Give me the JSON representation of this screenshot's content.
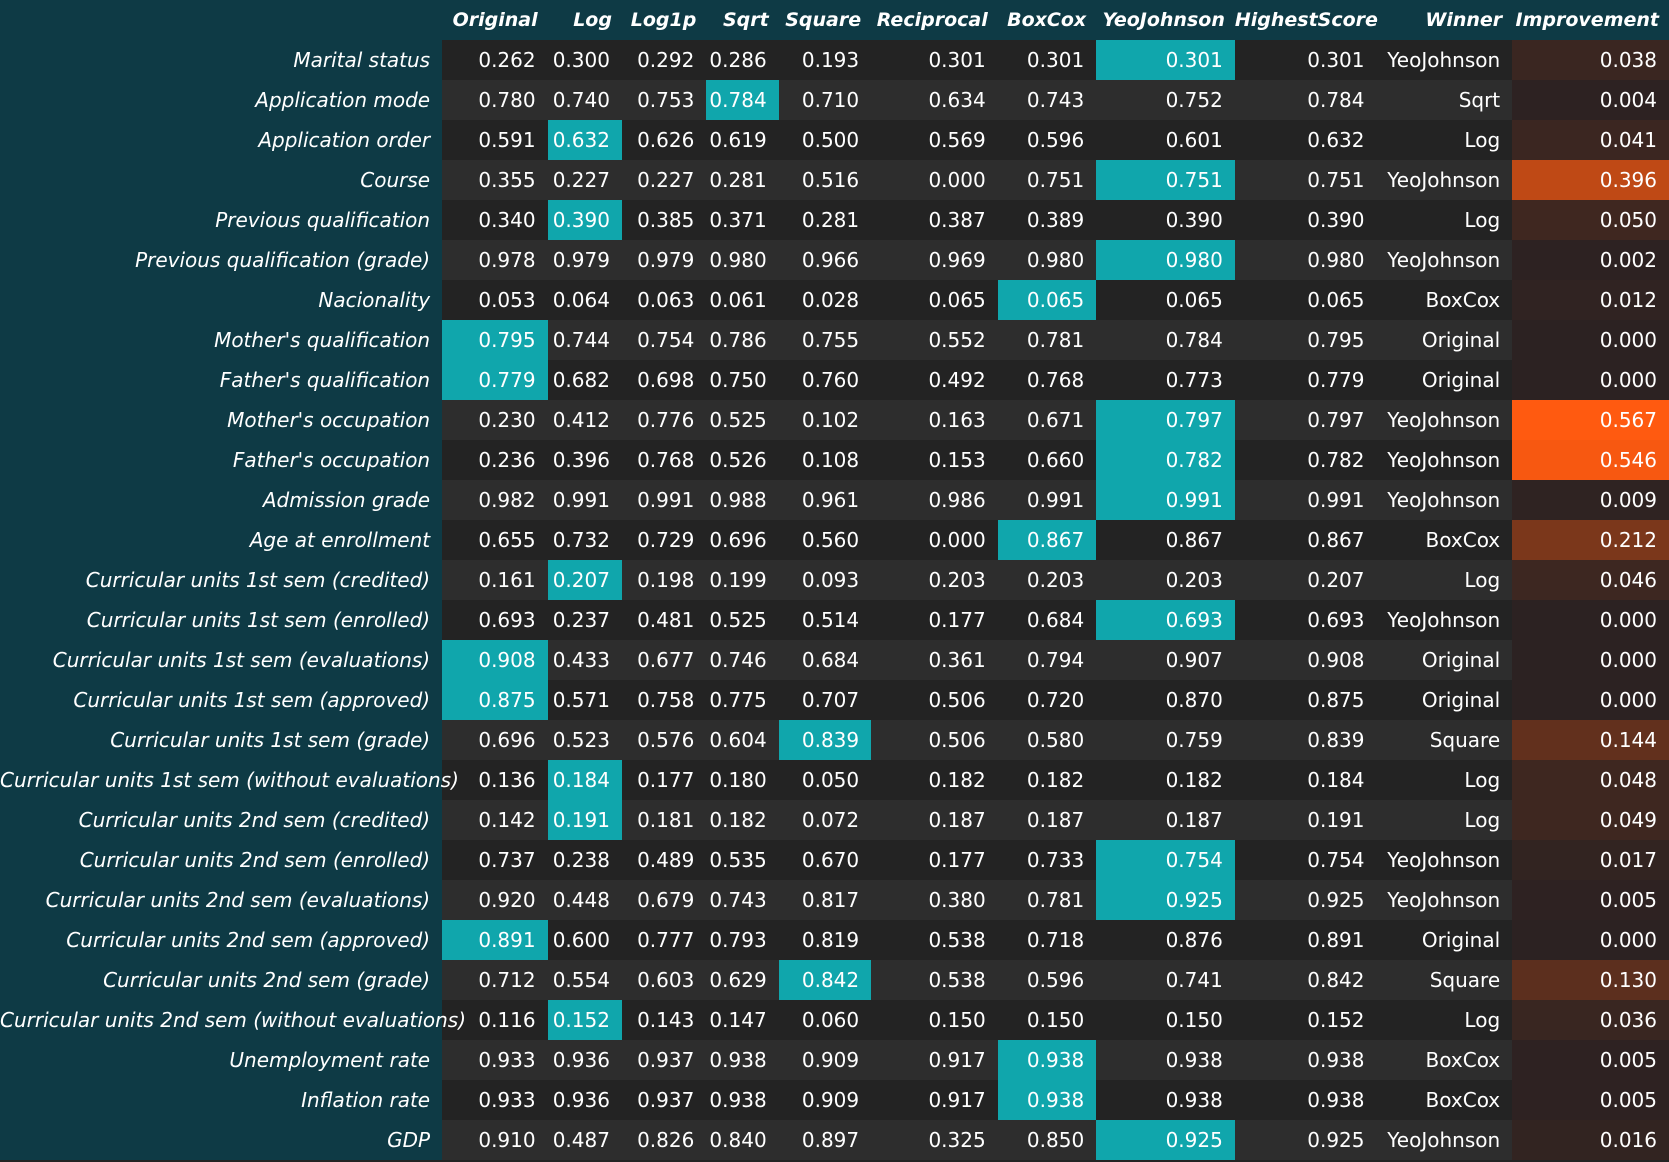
{
  "table": {
    "columns": [
      "Original",
      "Log",
      "Log1p",
      "Sqrt",
      "Square",
      "Reciprocal",
      "BoxCox",
      "YeoJohnson",
      "HighestScore",
      "Winner",
      "Improvement"
    ],
    "score_columns": 8,
    "colors": {
      "header_bg": "#0e3a45",
      "row_bg_a": "#232323",
      "row_bg_b": "#2d2d2d",
      "best_highlight": "#10a6ac",
      "improvement_low": "#2c2222",
      "improvement_high": "#ff5a10"
    },
    "rows": [
      {
        "label": "Marital status",
        "values": [
          "0.262",
          "0.300",
          "0.292",
          "0.286",
          "0.193",
          "0.301",
          "0.301",
          "0.301"
        ],
        "highest": "0.301",
        "winner": "YeoJohnson",
        "improvement": "0.038"
      },
      {
        "label": "Application mode",
        "values": [
          "0.780",
          "0.740",
          "0.753",
          "0.784",
          "0.710",
          "0.634",
          "0.743",
          "0.752"
        ],
        "highest": "0.784",
        "winner": "Sqrt",
        "improvement": "0.004"
      },
      {
        "label": "Application order",
        "values": [
          "0.591",
          "0.632",
          "0.626",
          "0.619",
          "0.500",
          "0.569",
          "0.596",
          "0.601"
        ],
        "highest": "0.632",
        "winner": "Log",
        "improvement": "0.041"
      },
      {
        "label": "Course",
        "values": [
          "0.355",
          "0.227",
          "0.227",
          "0.281",
          "0.516",
          "0.000",
          "0.751",
          "0.751"
        ],
        "highest": "0.751",
        "winner": "YeoJohnson",
        "improvement": "0.396"
      },
      {
        "label": "Previous qualification",
        "values": [
          "0.340",
          "0.390",
          "0.385",
          "0.371",
          "0.281",
          "0.387",
          "0.389",
          "0.390"
        ],
        "highest": "0.390",
        "winner": "Log",
        "improvement": "0.050"
      },
      {
        "label": "Previous qualification (grade)",
        "values": [
          "0.978",
          "0.979",
          "0.979",
          "0.980",
          "0.966",
          "0.969",
          "0.980",
          "0.980"
        ],
        "highest": "0.980",
        "winner": "YeoJohnson",
        "improvement": "0.002"
      },
      {
        "label": "Nacionality",
        "values": [
          "0.053",
          "0.064",
          "0.063",
          "0.061",
          "0.028",
          "0.065",
          "0.065",
          "0.065"
        ],
        "highest": "0.065",
        "winner": "BoxCox",
        "improvement": "0.012"
      },
      {
        "label": "Mother's qualification",
        "values": [
          "0.795",
          "0.744",
          "0.754",
          "0.786",
          "0.755",
          "0.552",
          "0.781",
          "0.784"
        ],
        "highest": "0.795",
        "winner": "Original",
        "improvement": "0.000"
      },
      {
        "label": "Father's qualification",
        "values": [
          "0.779",
          "0.682",
          "0.698",
          "0.750",
          "0.760",
          "0.492",
          "0.768",
          "0.773"
        ],
        "highest": "0.779",
        "winner": "Original",
        "improvement": "0.000"
      },
      {
        "label": "Mother's occupation",
        "values": [
          "0.230",
          "0.412",
          "0.776",
          "0.525",
          "0.102",
          "0.163",
          "0.671",
          "0.797"
        ],
        "highest": "0.797",
        "winner": "YeoJohnson",
        "improvement": "0.567"
      },
      {
        "label": "Father's occupation",
        "values": [
          "0.236",
          "0.396",
          "0.768",
          "0.526",
          "0.108",
          "0.153",
          "0.660",
          "0.782"
        ],
        "highest": "0.782",
        "winner": "YeoJohnson",
        "improvement": "0.546"
      },
      {
        "label": "Admission grade",
        "values": [
          "0.982",
          "0.991",
          "0.991",
          "0.988",
          "0.961",
          "0.986",
          "0.991",
          "0.991"
        ],
        "highest": "0.991",
        "winner": "YeoJohnson",
        "improvement": "0.009"
      },
      {
        "label": "Age at enrollment",
        "values": [
          "0.655",
          "0.732",
          "0.729",
          "0.696",
          "0.560",
          "0.000",
          "0.867",
          "0.867"
        ],
        "highest": "0.867",
        "winner": "BoxCox",
        "improvement": "0.212"
      },
      {
        "label": "Curricular units 1st sem (credited)",
        "values": [
          "0.161",
          "0.207",
          "0.198",
          "0.199",
          "0.093",
          "0.203",
          "0.203",
          "0.203"
        ],
        "highest": "0.207",
        "winner": "Log",
        "improvement": "0.046"
      },
      {
        "label": "Curricular units 1st sem (enrolled)",
        "values": [
          "0.693",
          "0.237",
          "0.481",
          "0.525",
          "0.514",
          "0.177",
          "0.684",
          "0.693"
        ],
        "highest": "0.693",
        "winner": "YeoJohnson",
        "improvement": "0.000"
      },
      {
        "label": "Curricular units 1st sem (evaluations)",
        "values": [
          "0.908",
          "0.433",
          "0.677",
          "0.746",
          "0.684",
          "0.361",
          "0.794",
          "0.907"
        ],
        "highest": "0.908",
        "winner": "Original",
        "improvement": "0.000"
      },
      {
        "label": "Curricular units 1st sem (approved)",
        "values": [
          "0.875",
          "0.571",
          "0.758",
          "0.775",
          "0.707",
          "0.506",
          "0.720",
          "0.870"
        ],
        "highest": "0.875",
        "winner": "Original",
        "improvement": "0.000"
      },
      {
        "label": "Curricular units 1st sem (grade)",
        "values": [
          "0.696",
          "0.523",
          "0.576",
          "0.604",
          "0.839",
          "0.506",
          "0.580",
          "0.759"
        ],
        "highest": "0.839",
        "winner": "Square",
        "improvement": "0.144"
      },
      {
        "label": "Curricular units 1st sem (without evaluations)",
        "values": [
          "0.136",
          "0.184",
          "0.177",
          "0.180",
          "0.050",
          "0.182",
          "0.182",
          "0.182"
        ],
        "highest": "0.184",
        "winner": "Log",
        "improvement": "0.048"
      },
      {
        "label": "Curricular units 2nd sem (credited)",
        "values": [
          "0.142",
          "0.191",
          "0.181",
          "0.182",
          "0.072",
          "0.187",
          "0.187",
          "0.187"
        ],
        "highest": "0.191",
        "winner": "Log",
        "improvement": "0.049"
      },
      {
        "label": "Curricular units 2nd sem (enrolled)",
        "values": [
          "0.737",
          "0.238",
          "0.489",
          "0.535",
          "0.670",
          "0.177",
          "0.733",
          "0.754"
        ],
        "highest": "0.754",
        "winner": "YeoJohnson",
        "improvement": "0.017"
      },
      {
        "label": "Curricular units 2nd sem (evaluations)",
        "values": [
          "0.920",
          "0.448",
          "0.679",
          "0.743",
          "0.817",
          "0.380",
          "0.781",
          "0.925"
        ],
        "highest": "0.925",
        "winner": "YeoJohnson",
        "improvement": "0.005"
      },
      {
        "label": "Curricular units 2nd sem (approved)",
        "values": [
          "0.891",
          "0.600",
          "0.777",
          "0.793",
          "0.819",
          "0.538",
          "0.718",
          "0.876"
        ],
        "highest": "0.891",
        "winner": "Original",
        "improvement": "0.000"
      },
      {
        "label": "Curricular units 2nd sem (grade)",
        "values": [
          "0.712",
          "0.554",
          "0.603",
          "0.629",
          "0.842",
          "0.538",
          "0.596",
          "0.741"
        ],
        "highest": "0.842",
        "winner": "Square",
        "improvement": "0.130"
      },
      {
        "label": "Curricular units 2nd sem (without evaluations)",
        "values": [
          "0.116",
          "0.152",
          "0.143",
          "0.147",
          "0.060",
          "0.150",
          "0.150",
          "0.150"
        ],
        "highest": "0.152",
        "winner": "Log",
        "improvement": "0.036"
      },
      {
        "label": "Unemployment rate",
        "values": [
          "0.933",
          "0.936",
          "0.937",
          "0.938",
          "0.909",
          "0.917",
          "0.938",
          "0.938"
        ],
        "highest": "0.938",
        "winner": "BoxCox",
        "improvement": "0.005"
      },
      {
        "label": "Inflation rate",
        "values": [
          "0.933",
          "0.936",
          "0.937",
          "0.938",
          "0.909",
          "0.917",
          "0.938",
          "0.938"
        ],
        "highest": "0.938",
        "winner": "BoxCox",
        "improvement": "0.005"
      },
      {
        "label": "GDP",
        "values": [
          "0.910",
          "0.487",
          "0.826",
          "0.840",
          "0.897",
          "0.325",
          "0.850",
          "0.925"
        ],
        "highest": "0.925",
        "winner": "YeoJohnson",
        "improvement": "0.016"
      }
    ]
  }
}
